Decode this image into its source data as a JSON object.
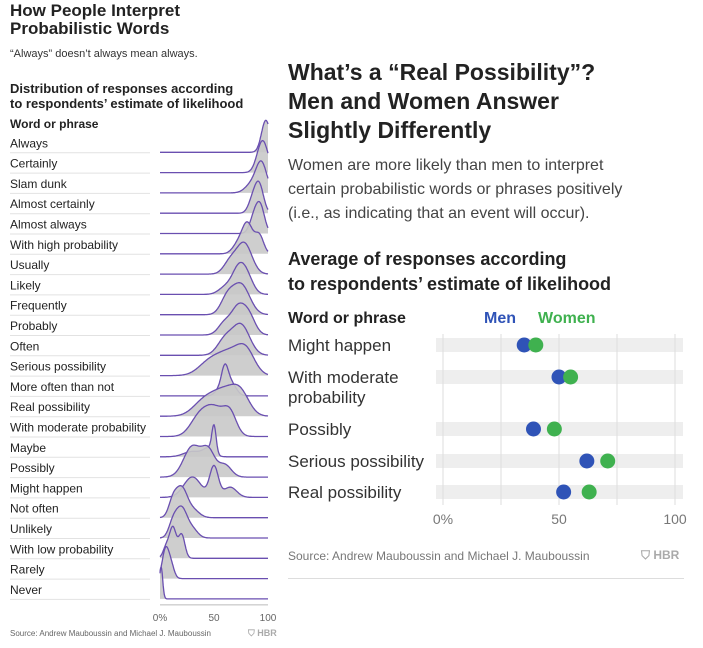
{
  "left_panel": {
    "title": "How People Interpret\nProbabilistic Words",
    "subtitle": "“Always” doesn’t always mean always.",
    "heading": "Distribution of responses according\nto respondents’ estimate of likelihood",
    "column_header": "Word or phrase",
    "source": "Source: Andrew Mauboussin and Michael J. Mauboussin",
    "logo": "HBR"
  },
  "right_panel": {
    "title": "What’s a “Real Possibility”?\nMen and Women Answer\nSlightly Differently",
    "description": "Women are more likely than men to interpret\ncertain probabilistic words or phrases positively\n(i.e., as indicating that an event will occur).",
    "heading": "Average of responses according\nto respondents’ estimate of likelihood",
    "column_header": "Word or phrase",
    "legend_men": "Men",
    "legend_women": "Women",
    "source": "Source: Andrew Mauboussin and Michael J. Mauboussin",
    "logo": "HBR"
  },
  "colors": {
    "men": "#2f53b7",
    "women": "#3fb14f",
    "ridge_line": "#6a4fb0",
    "ridge_fill": "#c9c9c9",
    "band": "#eeeeee",
    "grid": "#dddddd"
  },
  "chart_data": [
    {
      "type": "area",
      "variant": "ridgeline",
      "xlim": [
        0,
        100
      ],
      "x_ticks": [
        "0%",
        "50",
        "100"
      ],
      "grid": false,
      "series": [
        {
          "name": "Always",
          "peaks": [
            [
              98,
              4,
              1.0
            ]
          ]
        },
        {
          "name": "Certainly",
          "peaks": [
            [
              95,
              5,
              1.0
            ]
          ]
        },
        {
          "name": "Slam dunk",
          "peaks": [
            [
              94,
              5,
              1.0
            ],
            [
              85,
              6,
              0.3
            ]
          ]
        },
        {
          "name": "Almost certainly",
          "peaks": [
            [
              92,
              4,
              1.0
            ],
            [
              86,
              4,
              0.5
            ]
          ]
        },
        {
          "name": "Almost always",
          "peaks": [
            [
              93,
              4,
              1.0
            ],
            [
              87,
              4,
              0.6
            ]
          ]
        },
        {
          "name": "With high probability",
          "peaks": [
            [
              81,
              5,
              1.0
            ],
            [
              92,
              4,
              0.6
            ],
            [
              72,
              5,
              0.3
            ]
          ]
        },
        {
          "name": "Usually",
          "peaks": [
            [
              78,
              7,
              1.0
            ],
            [
              65,
              6,
              0.4
            ]
          ]
        },
        {
          "name": "Likely",
          "peaks": [
            [
              72,
              6,
              1.0
            ],
            [
              80,
              6,
              0.8
            ],
            [
              60,
              6,
              0.3
            ]
          ]
        },
        {
          "name": "Frequently",
          "peaks": [
            [
              75,
              8,
              1.0
            ],
            [
              62,
              6,
              0.5
            ]
          ]
        },
        {
          "name": "Probably",
          "peaks": [
            [
              72,
              6,
              1.0
            ],
            [
              82,
              6,
              0.8
            ],
            [
              60,
              6,
              0.5
            ]
          ]
        },
        {
          "name": "Often",
          "peaks": [
            [
              75,
              8,
              1.0
            ],
            [
              60,
              7,
              0.5
            ]
          ]
        },
        {
          "name": "Serious possibility",
          "peaks": [
            [
              65,
              12,
              0.6
            ],
            [
              80,
              8,
              0.5
            ],
            [
              45,
              10,
              0.3
            ]
          ]
        },
        {
          "name": "More often than not",
          "peaks": [
            [
              60,
              3,
              1.0
            ],
            [
              65,
              5,
              0.7
            ],
            [
              55,
              4,
              0.3
            ]
          ]
        },
        {
          "name": "Real possibility",
          "peaks": [
            [
              60,
              12,
              0.6
            ],
            [
              75,
              8,
              0.4
            ],
            [
              40,
              10,
              0.3
            ]
          ]
        },
        {
          "name": "With moderate probability",
          "peaks": [
            [
              50,
              10,
              0.6
            ],
            [
              65,
              6,
              0.4
            ],
            [
              35,
              8,
              0.3
            ]
          ]
        },
        {
          "name": "Maybe",
          "peaks": [
            [
              50,
              2,
              1.0
            ],
            [
              45,
              5,
              0.3
            ],
            [
              30,
              8,
              0.2
            ]
          ]
        },
        {
          "name": "Possibly",
          "peaks": [
            [
              30,
              8,
              0.5
            ],
            [
              45,
              6,
              0.4
            ],
            [
              60,
              6,
              0.2
            ]
          ]
        },
        {
          "name": "Might happen",
          "peaks": [
            [
              50,
              4,
              0.6
            ],
            [
              30,
              8,
              0.4
            ],
            [
              65,
              6,
              0.2
            ]
          ]
        },
        {
          "name": "Not often",
          "peaks": [
            [
              20,
              5,
              1.0
            ],
            [
              12,
              4,
              0.6
            ],
            [
              30,
              6,
              0.3
            ]
          ]
        },
        {
          "name": "Unlikely",
          "peaks": [
            [
              20,
              5,
              1.0
            ],
            [
              12,
              4,
              0.5
            ],
            [
              30,
              5,
              0.3
            ]
          ]
        },
        {
          "name": "With low probability",
          "peaks": [
            [
              12,
              3,
              1.0
            ],
            [
              20,
              3,
              0.8
            ],
            [
              6,
              3,
              0.4
            ]
          ]
        },
        {
          "name": "Rarely",
          "peaks": [
            [
              5,
              3,
              1.0
            ],
            [
              10,
              3,
              0.5
            ]
          ]
        },
        {
          "name": "Never",
          "peaks": [
            [
              1,
              1.5,
              1.0
            ]
          ]
        }
      ]
    },
    {
      "type": "scatter",
      "variant": "dot-plot",
      "xlim": [
        0,
        100
      ],
      "x_ticks": [
        "0%",
        "50",
        "100"
      ],
      "grid": true,
      "categories": [
        "Might happen",
        "With moderate\nprobability",
        "Possibly",
        "Serious possibility",
        "Real possibility"
      ],
      "series": [
        {
          "name": "Men",
          "values": [
            35,
            50,
            39,
            62,
            52
          ]
        },
        {
          "name": "Women",
          "values": [
            40,
            55,
            48,
            71,
            63
          ]
        }
      ]
    }
  ]
}
